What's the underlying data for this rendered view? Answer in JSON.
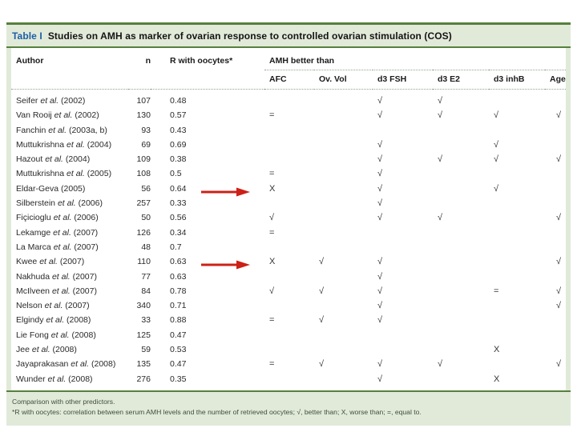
{
  "table": {
    "title_label": "Table I",
    "title_text": "Studies on AMH as marker of ovarian response to controlled ovarian stimulation (COS)",
    "columns": {
      "author": "Author",
      "n": "n",
      "r_oocytes": "R with oocytes*",
      "group": "AMH better than",
      "sub": [
        "AFC",
        "Ov. Vol",
        "d3 FSH",
        "d3 E2",
        "d3 inhB",
        "Age"
      ]
    },
    "rows": [
      {
        "author": "Seifer et al. (2002)",
        "n": "107",
        "r": "0.48",
        "marks": [
          "",
          "",
          "√",
          "√",
          "",
          ""
        ],
        "arrow": false
      },
      {
        "author": "Van Rooij et al. (2002)",
        "n": "130",
        "r": "0.57",
        "marks": [
          "=",
          "",
          "√",
          "√",
          "√",
          "√"
        ],
        "arrow": false
      },
      {
        "author": "Fanchin et al. (2003a, b)",
        "n": "93",
        "r": "0.43",
        "marks": [
          "",
          "",
          "",
          "",
          "",
          ""
        ],
        "arrow": false
      },
      {
        "author": "Muttukrishna et al. (2004)",
        "n": "69",
        "r": "0.69",
        "marks": [
          "",
          "",
          "√",
          "",
          "√",
          ""
        ],
        "arrow": false
      },
      {
        "author": "Hazout et al. (2004)",
        "n": "109",
        "r": "0.38",
        "marks": [
          "",
          "",
          "√",
          "√",
          "√",
          "√"
        ],
        "arrow": false
      },
      {
        "author": "Muttukrishna et al. (2005)",
        "n": "108",
        "r": "0.5",
        "marks": [
          "=",
          "",
          "√",
          "",
          "",
          ""
        ],
        "arrow": false
      },
      {
        "author": "Eldar-Geva (2005)",
        "n": "56",
        "r": "0.64",
        "marks": [
          "X",
          "",
          "√",
          "",
          "√",
          ""
        ],
        "arrow": true
      },
      {
        "author": "Silberstein et al. (2006)",
        "n": "257",
        "r": "0.33",
        "marks": [
          "",
          "",
          "√",
          "",
          "",
          ""
        ],
        "arrow": false
      },
      {
        "author": "Fiçicioglu et al. (2006)",
        "n": "50",
        "r": "0.56",
        "marks": [
          "√",
          "",
          "√",
          "√",
          "",
          "√"
        ],
        "arrow": false
      },
      {
        "author": "Lekamge et al. (2007)",
        "n": "126",
        "r": "0.34",
        "marks": [
          "=",
          "",
          "",
          "",
          "",
          ""
        ],
        "arrow": false
      },
      {
        "author": "La Marca et al. (2007)",
        "n": "48",
        "r": "0.7",
        "marks": [
          "",
          "",
          "",
          "",
          "",
          ""
        ],
        "arrow": false
      },
      {
        "author": "Kwee et al. (2007)",
        "n": "110",
        "r": "0.63",
        "marks": [
          "X",
          "√",
          "√",
          "",
          "",
          "√"
        ],
        "arrow": true
      },
      {
        "author": "Nakhuda et al. (2007)",
        "n": "77",
        "r": "0.63",
        "marks": [
          "",
          "",
          "√",
          "",
          "",
          ""
        ],
        "arrow": false
      },
      {
        "author": "McIlveen et al. (2007)",
        "n": "84",
        "r": "0.78",
        "marks": [
          "√",
          "√",
          "√",
          "",
          "=",
          "√"
        ],
        "arrow": false
      },
      {
        "author": "Nelson et al. (2007)",
        "n": "340",
        "r": "0.71",
        "marks": [
          "",
          "",
          "√",
          "",
          "",
          "√"
        ],
        "arrow": false
      },
      {
        "author": "Elgindy et al. (2008)",
        "n": "33",
        "r": "0.88",
        "marks": [
          "=",
          "√",
          "√",
          "",
          "",
          ""
        ],
        "arrow": false
      },
      {
        "author": "Lie Fong et al. (2008)",
        "n": "125",
        "r": "0.47",
        "marks": [
          "",
          "",
          "",
          "",
          "",
          ""
        ],
        "arrow": false
      },
      {
        "author": "Jee et al. (2008)",
        "n": "59",
        "r": "0.53",
        "marks": [
          "",
          "",
          "",
          "",
          "X",
          ""
        ],
        "arrow": false
      },
      {
        "author": "Jayaprakasan et al. (2008)",
        "n": "135",
        "r": "0.47",
        "marks": [
          "=",
          "√",
          "√",
          "√",
          "",
          "√"
        ],
        "arrow": false
      },
      {
        "author": "Wunder et al. (2008)",
        "n": "276",
        "r": "0.35",
        "marks": [
          "",
          "",
          "√",
          "",
          "X",
          ""
        ],
        "arrow": false
      }
    ],
    "footnotes": [
      "Comparison with other predictors.",
      "*R with oocytes: correlation between serum AMH levels and the number of retrieved oocytes; √, better than; X, worse than; =, equal to."
    ]
  },
  "legend": {
    "better_than": "√",
    "worse_than": "X",
    "equal_to": "="
  },
  "colors": {
    "band_green": "#e1ead9",
    "rule_green": "#55803d",
    "title_blue": "#1d5da6",
    "arrow_red": "#cc2018",
    "dotted_line": "#93a291"
  }
}
